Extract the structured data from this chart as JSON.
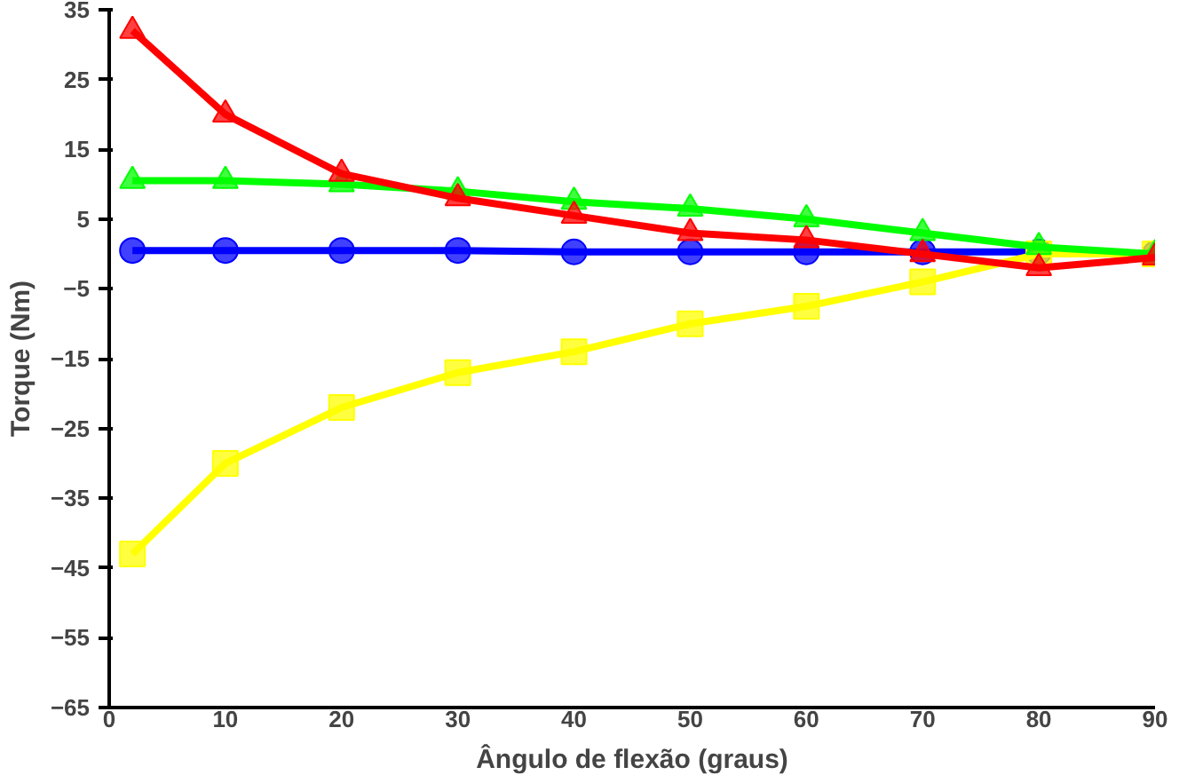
{
  "chart_data": {
    "type": "line",
    "xlabel": "Ângulo de flexão (graus)",
    "ylabel": "Torque (Nm)",
    "x": [
      2,
      10,
      20,
      30,
      40,
      50,
      60,
      70,
      80,
      90
    ],
    "series": [
      {
        "color": "#0000ff",
        "marker": "circle",
        "values": [
          0.5,
          0.5,
          0.5,
          0.5,
          0.3,
          0.3,
          0.3,
          0.3,
          0.3,
          0
        ]
      },
      {
        "color": "#ffff00",
        "marker": "square",
        "values": [
          -43,
          -30,
          -22,
          -17,
          -14,
          -10,
          -7.5,
          -4,
          0,
          0
        ]
      },
      {
        "color": "#00ff00",
        "marker": "triangle",
        "values": [
          10.5,
          10.5,
          10,
          9,
          7.5,
          6.5,
          5,
          3,
          1,
          0
        ]
      },
      {
        "color": "#ff0000",
        "marker": "triangle",
        "values": [
          32,
          20,
          11.5,
          8,
          5.5,
          3,
          2,
          0,
          -2,
          -0.5
        ]
      }
    ],
    "xlim": [
      0,
      90
    ],
    "xticks": [
      0,
      10,
      20,
      30,
      40,
      50,
      60,
      70,
      80,
      90
    ],
    "ylim": [
      -65,
      35
    ],
    "yticks": [
      -65,
      -55,
      -45,
      -35,
      -25,
      -15,
      -5,
      5,
      15,
      25,
      35
    ],
    "grid": false,
    "line_style": "solid"
  }
}
